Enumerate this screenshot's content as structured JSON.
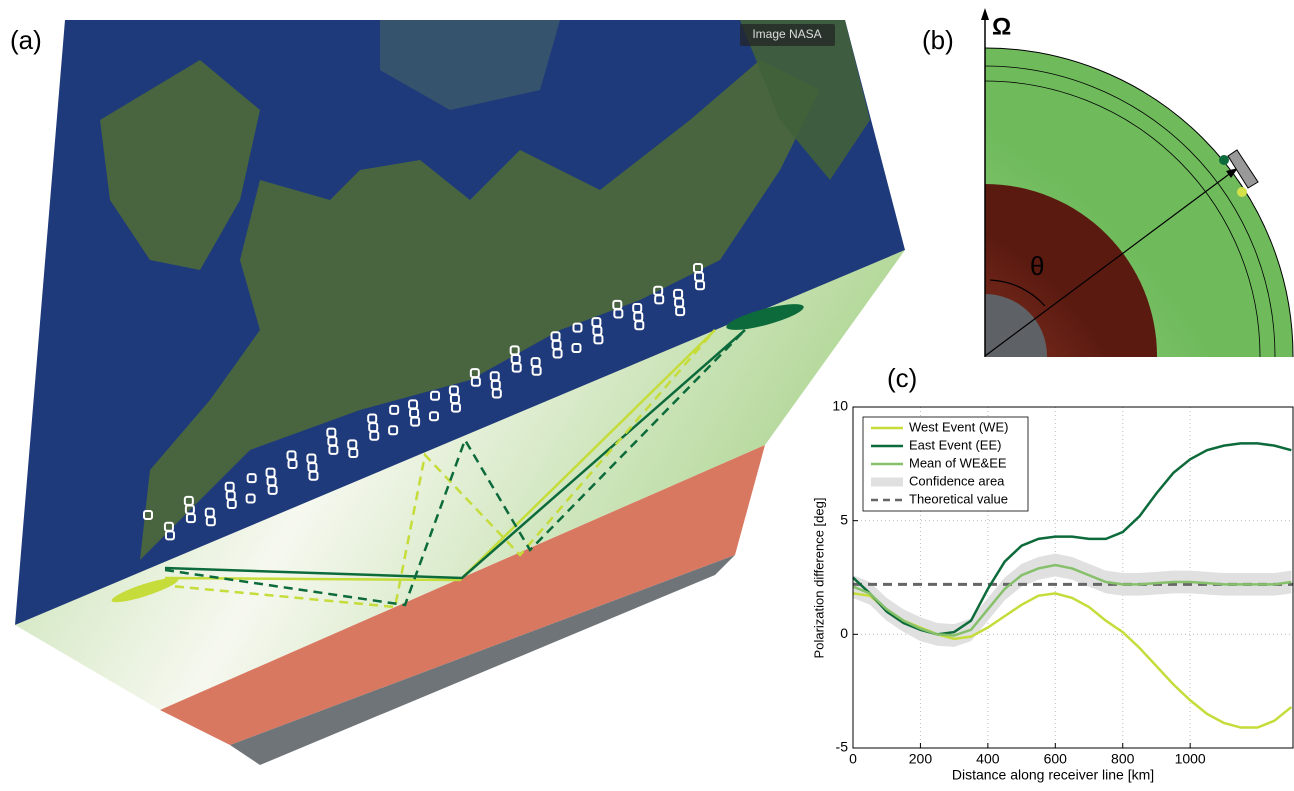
{
  "panels": {
    "a": {
      "label": "(a)",
      "credit": "Image NASA"
    },
    "b": {
      "label": "(b)",
      "axis_symbol": "Ω",
      "angle_symbol": "θ"
    },
    "c": {
      "label": "(c)"
    }
  },
  "chart_data": {
    "type": "line",
    "xlabel": "Distance along receiver line [km]",
    "ylabel": "Polarization difference [deg]",
    "x": [
      0,
      50,
      100,
      150,
      200,
      250,
      300,
      350,
      400,
      450,
      500,
      550,
      600,
      650,
      700,
      750,
      800,
      850,
      900,
      950,
      1000,
      1050,
      1100,
      1150,
      1200,
      1250,
      1300
    ],
    "series": [
      {
        "name": "West Event (WE)",
        "color": "#c5dc3a",
        "values": [
          1.8,
          1.7,
          1.1,
          0.6,
          0.3,
          0.0,
          -0.2,
          -0.1,
          0.3,
          0.8,
          1.3,
          1.7,
          1.8,
          1.6,
          1.2,
          0.6,
          0.1,
          -0.6,
          -1.4,
          -2.2,
          -2.9,
          -3.5,
          -3.9,
          -4.1,
          -4.1,
          -3.8,
          -3.2
        ]
      },
      {
        "name": "East Event (EE)",
        "color": "#0d6b3b",
        "values": [
          2.5,
          1.8,
          1.0,
          0.5,
          0.2,
          0.0,
          0.1,
          0.6,
          2.0,
          3.2,
          3.9,
          4.2,
          4.3,
          4.3,
          4.2,
          4.2,
          4.5,
          5.2,
          6.2,
          7.1,
          7.7,
          8.1,
          8.3,
          8.4,
          8.4,
          8.3,
          8.1
        ]
      },
      {
        "name": "Mean of WE&EE",
        "color": "#86c06b",
        "values": [
          2.1,
          1.8,
          1.1,
          0.6,
          0.25,
          0.0,
          -0.05,
          0.2,
          1.1,
          2.0,
          2.6,
          2.9,
          3.05,
          2.9,
          2.6,
          2.3,
          2.2,
          2.2,
          2.25,
          2.3,
          2.3,
          2.25,
          2.2,
          2.2,
          2.2,
          2.2,
          2.3
        ]
      }
    ],
    "confidence": {
      "name": "Confidence area",
      "color": "#e0e0e0",
      "lower": [
        1.6,
        1.3,
        0.6,
        0.1,
        -0.3,
        -0.5,
        -0.55,
        -0.3,
        0.6,
        1.5,
        2.1,
        2.4,
        2.55,
        2.4,
        2.1,
        1.8,
        1.7,
        1.7,
        1.75,
        1.8,
        1.8,
        1.75,
        1.7,
        1.7,
        1.7,
        1.7,
        1.8
      ],
      "upper": [
        2.6,
        2.3,
        1.6,
        1.1,
        0.75,
        0.5,
        0.45,
        0.7,
        1.6,
        2.5,
        3.1,
        3.4,
        3.55,
        3.4,
        3.1,
        2.8,
        2.7,
        2.7,
        2.75,
        2.8,
        2.8,
        2.75,
        2.7,
        2.7,
        2.7,
        2.7,
        2.8
      ]
    },
    "reference": {
      "name": "Theoretical value",
      "color": "#666666",
      "value": 2.2
    },
    "xlim": [
      0,
      1305
    ],
    "xticks": [
      0,
      200,
      400,
      600,
      800,
      1000
    ],
    "ylim": [
      -5,
      10
    ],
    "yticks": [
      -5,
      0,
      5,
      10
    ],
    "grid": true,
    "legend": "upper-left"
  }
}
